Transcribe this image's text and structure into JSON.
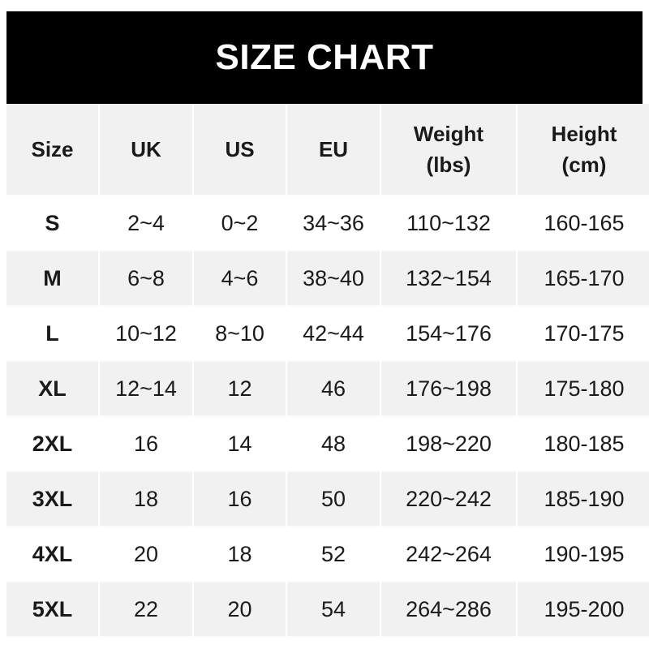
{
  "title": "SIZE CHART",
  "headers": [
    "Size",
    "UK",
    "US",
    "EU",
    "Weight\n(lbs)",
    "Height\n(cm)"
  ],
  "header_lines": [
    [
      "Size"
    ],
    [
      "UK"
    ],
    [
      "US"
    ],
    [
      "EU"
    ],
    [
      "Weight",
      "(lbs)"
    ],
    [
      "Height",
      "(cm)"
    ]
  ],
  "rows": [
    [
      "S",
      "2~4",
      "0~2",
      "34~36",
      "110~132",
      "160-165"
    ],
    [
      "M",
      "6~8",
      "4~6",
      "38~40",
      "132~154",
      "165-170"
    ],
    [
      "L",
      "10~12",
      "8~10",
      "42~44",
      "154~176",
      "170-175"
    ],
    [
      "XL",
      "12~14",
      "12",
      "46",
      "176~198",
      "175-180"
    ],
    [
      "2XL",
      "16",
      "14",
      "48",
      "198~220",
      "180-185"
    ],
    [
      "3XL",
      "18",
      "16",
      "50",
      "220~242",
      "185-190"
    ],
    [
      "4XL",
      "20",
      "18",
      "52",
      "242~264",
      "190-195"
    ],
    [
      "5XL",
      "22",
      "20",
      "54",
      "264~286",
      "195-200"
    ]
  ],
  "colors": {
    "title_bg": "#000000",
    "header_bg": "#f1f1f1",
    "alt_row_bg": "#f1f1f1"
  }
}
